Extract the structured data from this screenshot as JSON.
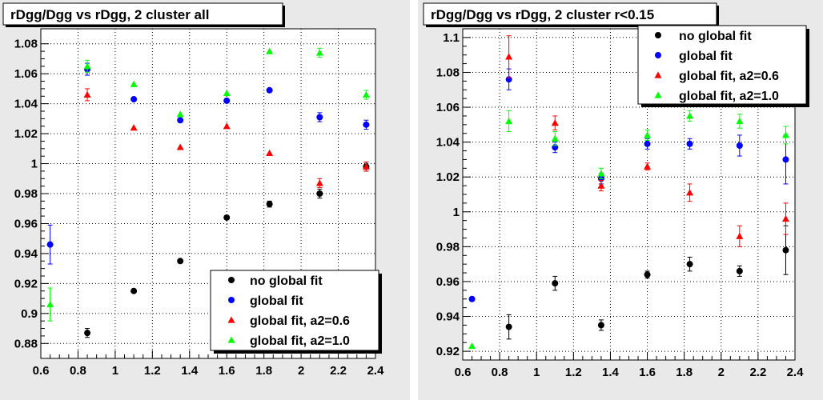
{
  "colors": {
    "pad_background": "#e9e9e9",
    "frame": "#000000",
    "no_global_fit": "#000000",
    "global_fit": "#0000ff",
    "global_fit_a2_06": "#ff0000",
    "global_fit_a2_10": "#00ff00"
  },
  "chart_data": [
    {
      "type": "scatter",
      "title": "rDgg/Dgg vs rDgg, 2 cluster all",
      "xlabel": "",
      "ylabel": "",
      "xlim": [
        0.6,
        2.4
      ],
      "ylim": [
        0.87,
        1.09
      ],
      "x_ticks": [
        0.6,
        0.8,
        1.0,
        1.2,
        1.4,
        1.6,
        1.8,
        2.0,
        2.2,
        2.4
      ],
      "x_tick_labels": [
        "0.6",
        "0.8",
        "1",
        "1.2",
        "1.4",
        "1.6",
        "1.8",
        "2",
        "2.2",
        "2.4"
      ],
      "y_ticks": [
        0.88,
        0.9,
        0.92,
        0.94,
        0.96,
        0.98,
        1.0,
        1.02,
        1.04,
        1.06,
        1.08
      ],
      "y_tick_labels": [
        "0.88",
        "0.9",
        "0.92",
        "0.94",
        "0.96",
        "0.98",
        "1",
        "1.02",
        "1.04",
        "1.06",
        "1.08"
      ],
      "grid": true,
      "legend_position": "bottom-right",
      "series": [
        {
          "name": "no global fit",
          "marker": "circle",
          "color": "#000000",
          "points": [
            [
              0.85,
              0.887,
              0.003
            ],
            [
              1.1,
              0.915,
              0.0
            ],
            [
              1.35,
              0.935,
              0.0
            ],
            [
              1.6,
              0.964,
              0.0
            ],
            [
              1.83,
              0.973,
              0.002
            ],
            [
              2.1,
              0.98,
              0.003
            ],
            [
              2.35,
              0.998,
              0.003
            ]
          ]
        },
        {
          "name": "global fit",
          "marker": "circle",
          "color": "#0000ff",
          "points": [
            [
              0.65,
              0.946,
              0.013
            ],
            [
              0.85,
              1.063,
              0.004
            ],
            [
              1.1,
              1.043,
              0.0
            ],
            [
              1.35,
              1.029,
              0.0
            ],
            [
              1.6,
              1.042,
              0.0
            ],
            [
              1.83,
              1.049,
              0.0
            ],
            [
              2.1,
              1.031,
              0.003
            ],
            [
              2.35,
              1.026,
              0.003
            ]
          ]
        },
        {
          "name": "global fit, a2=0.6",
          "marker": "triangle",
          "color": "#ff0000",
          "points": [
            [
              0.85,
              1.046,
              0.004
            ],
            [
              1.1,
              1.024,
              0.0
            ],
            [
              1.35,
              1.011,
              0.0
            ],
            [
              1.6,
              1.025,
              0.0
            ],
            [
              1.83,
              1.007,
              0.0
            ],
            [
              2.1,
              0.987,
              0.003
            ],
            [
              2.35,
              0.998,
              0.003
            ]
          ]
        },
        {
          "name": "global fit, a2=1.0",
          "marker": "triangle",
          "color": "#00ff00",
          "points": [
            [
              0.65,
              0.906,
              0.011
            ],
            [
              0.85,
              1.065,
              0.004
            ],
            [
              1.1,
              1.053,
              0.0
            ],
            [
              1.35,
              1.033,
              0.0
            ],
            [
              1.6,
              1.047,
              0.0
            ],
            [
              1.83,
              1.075,
              0.0
            ],
            [
              2.1,
              1.074,
              0.003
            ],
            [
              2.35,
              1.046,
              0.003
            ]
          ]
        }
      ]
    },
    {
      "type": "scatter",
      "title": "rDgg/Dgg vs rDgg, 2 cluster r<0.15",
      "xlabel": "",
      "ylabel": "",
      "xlim": [
        0.6,
        2.4
      ],
      "ylim": [
        0.915,
        1.105
      ],
      "x_ticks": [
        0.6,
        0.8,
        1.0,
        1.2,
        1.4,
        1.6,
        1.8,
        2.0,
        2.2,
        2.4
      ],
      "x_tick_labels": [
        "0.6",
        "0.8",
        "1",
        "1.2",
        "1.4",
        "1.6",
        "1.8",
        "2",
        "2.2",
        "2.4"
      ],
      "y_ticks": [
        0.92,
        0.94,
        0.96,
        0.98,
        1.0,
        1.02,
        1.04,
        1.06,
        1.08,
        1.1
      ],
      "y_tick_labels": [
        "0.92",
        "0.94",
        "0.96",
        "0.98",
        "1",
        "1.02",
        "1.04",
        "1.06",
        "1.08",
        "1.1"
      ],
      "grid": true,
      "legend_position": "top-right",
      "series": [
        {
          "name": "no global fit",
          "marker": "circle",
          "color": "#000000",
          "points": [
            [
              0.85,
              0.934,
              0.007
            ],
            [
              1.1,
              0.959,
              0.004
            ],
            [
              1.35,
              0.935,
              0.003
            ],
            [
              1.6,
              0.964,
              0.002
            ],
            [
              1.83,
              0.97,
              0.004
            ],
            [
              2.1,
              0.966,
              0.003
            ],
            [
              2.35,
              0.978,
              0.014
            ]
          ]
        },
        {
          "name": "global fit",
          "marker": "circle",
          "color": "#0000ff",
          "points": [
            [
              0.65,
              0.95,
              0.0
            ],
            [
              0.85,
              1.076,
              0.006
            ],
            [
              1.1,
              1.037,
              0.003
            ],
            [
              1.35,
              1.019,
              0.003
            ],
            [
              1.6,
              1.039,
              0.003
            ],
            [
              1.83,
              1.039,
              0.003
            ],
            [
              2.1,
              1.038,
              0.006
            ],
            [
              2.35,
              1.03,
              0.014
            ]
          ]
        },
        {
          "name": "global fit, a2=0.6",
          "marker": "triangle",
          "color": "#ff0000",
          "points": [
            [
              0.85,
              1.089,
              0.012
            ],
            [
              1.1,
              1.051,
              0.004
            ],
            [
              1.35,
              1.015,
              0.003
            ],
            [
              1.6,
              1.026,
              0.002
            ],
            [
              1.83,
              1.011,
              0.005
            ],
            [
              2.1,
              0.986,
              0.006
            ],
            [
              2.35,
              0.996,
              0.009
            ]
          ]
        },
        {
          "name": "global fit, a2=1.0",
          "marker": "triangle",
          "color": "#00ff00",
          "points": [
            [
              0.65,
              0.923,
              0.0
            ],
            [
              0.85,
              1.052,
              0.006
            ],
            [
              1.1,
              1.042,
              0.004
            ],
            [
              1.35,
              1.022,
              0.003
            ],
            [
              1.6,
              1.044,
              0.003
            ],
            [
              1.83,
              1.055,
              0.003
            ],
            [
              2.1,
              1.052,
              0.004
            ],
            [
              2.35,
              1.044,
              0.005
            ]
          ]
        }
      ]
    }
  ]
}
